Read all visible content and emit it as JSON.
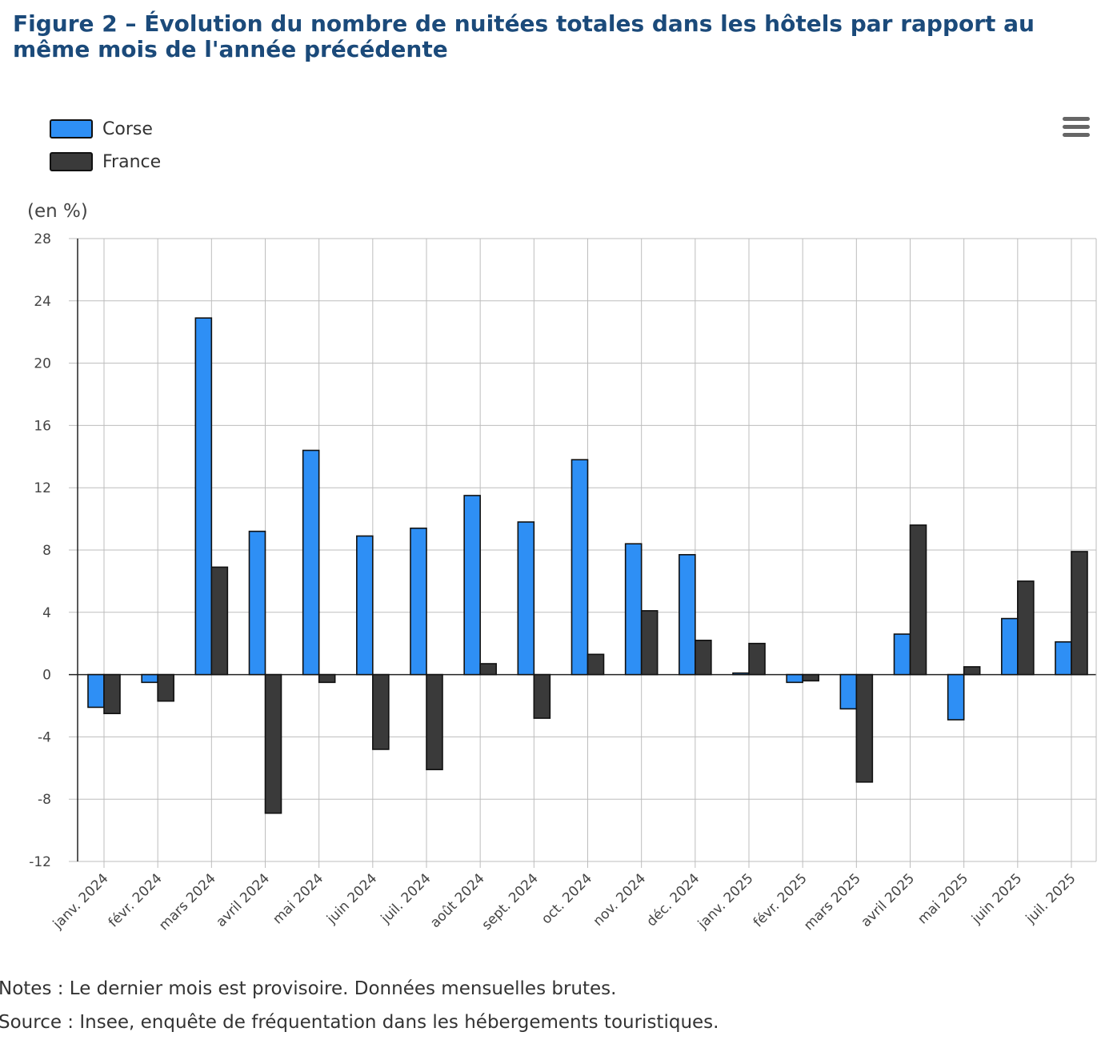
{
  "title": "Figure 2 – Évolution du nombre de nuitées totales dans les hôtels par rapport au même mois de l'année précédente",
  "menu_icon": "hamburger-menu-icon",
  "notes": "Notes : Le dernier mois est provisoire. Données mensuelles brutes.",
  "source": "Source : Insee, enquête de fréquentation dans les hébergements touristiques.",
  "chart_data": {
    "type": "bar",
    "ylabel": "(en %)",
    "ylim": [
      -12,
      28
    ],
    "yticks": [
      28,
      24,
      20,
      16,
      12,
      8,
      4,
      0,
      -4,
      -8,
      -12
    ],
    "grid": true,
    "legend_position": "top-left",
    "categories": [
      "janv. 2024",
      "févr. 2024",
      "mars 2024",
      "avril 2024",
      "mai 2024",
      "juin 2024",
      "juil. 2024",
      "août 2024",
      "sept. 2024",
      "oct. 2024",
      "nov. 2024",
      "déc. 2024",
      "janv. 2025",
      "févr. 2025",
      "mars 2025",
      "avril 2025",
      "mai 2025",
      "juin 2025",
      "juil. 2025"
    ],
    "series": [
      {
        "name": "Corse",
        "color": "#2e8ff5",
        "values": [
          -2.1,
          -0.5,
          22.9,
          9.2,
          14.4,
          8.9,
          9.4,
          11.5,
          9.8,
          13.8,
          8.4,
          7.7,
          0.1,
          -0.5,
          -2.2,
          2.6,
          -2.9,
          3.6,
          2.1
        ]
      },
      {
        "name": "France",
        "color": "#3a3a3a",
        "values": [
          -2.5,
          -1.7,
          6.9,
          -8.9,
          -0.5,
          -4.8,
          -6.1,
          0.7,
          -2.8,
          1.3,
          4.1,
          2.2,
          2.0,
          -0.4,
          -6.9,
          9.6,
          0.5,
          6.0,
          7.9
        ]
      }
    ]
  }
}
